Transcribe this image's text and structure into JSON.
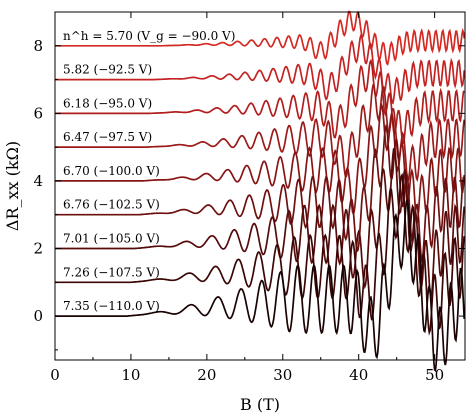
{
  "chart_data": {
    "type": "line",
    "xlabel": "B (T)",
    "ylabel": "ΔR_xx (kΩ)",
    "xlim": [
      0,
      54
    ],
    "ylim": [
      -1.3,
      9.0
    ],
    "xticks": [
      0,
      10,
      20,
      30,
      40,
      50
    ],
    "yticks": [
      0,
      2,
      4,
      6,
      8
    ],
    "grid": false,
    "legend": "inline labels at left of each curve",
    "series": [
      {
        "label": "n^h = 5.70 (V_g = −90.0 V)",
        "offset": 8.0,
        "color": "#d42a24",
        "onset": 14,
        "main_peak": 39.2,
        "peak_amp": 0.6,
        "period": 5.3,
        "pre_drop": 0.45
      },
      {
        "label": "5.82 (−92.5 V)",
        "offset": 7.0,
        "color": "#c42323",
        "onset": 13,
        "main_peak": 40.2,
        "peak_amp": 0.75,
        "period": 5.6,
        "pre_drop": 0.6
      },
      {
        "label": "6.18 (−95.0 V)",
        "offset": 6.0,
        "color": "#b21e1e",
        "onset": 12.5,
        "main_peak": 41.3,
        "peak_amp": 0.9,
        "period": 5.8,
        "pre_drop": 0.75
      },
      {
        "label": "6.47 (−97.5 V)",
        "offset": 5.0,
        "color": "#9c1a1a",
        "onset": 12,
        "main_peak": 42.5,
        "peak_amp": 1.1,
        "period": 6.1,
        "pre_drop": 0.9
      },
      {
        "label": "6.70 (−100.0 V)",
        "offset": 4.0,
        "color": "#861515",
        "onset": 11.5,
        "main_peak": 43.3,
        "peak_amp": 1.3,
        "period": 6.3,
        "pre_drop": 1.0
      },
      {
        "label": "6.76 (−102.5 V)",
        "offset": 3.0,
        "color": "#6e1010",
        "onset": 11,
        "main_peak": 43.8,
        "peak_amp": 1.5,
        "period": 6.4,
        "pre_drop": 1.1
      },
      {
        "label": "7.01 (−105.0 V)",
        "offset": 2.0,
        "color": "#560b0b",
        "onset": 10.5,
        "main_peak": 44.6,
        "peak_amp": 1.7,
        "period": 6.6,
        "pre_drop": 1.2
      },
      {
        "label": "7.26 (−107.5 V)",
        "offset": 1.0,
        "color": "#3a0606",
        "onset": 10,
        "main_peak": 45.3,
        "peak_amp": 1.85,
        "period": 6.8,
        "pre_drop": 1.3
      },
      {
        "label": "7.35 (−110.0 V)",
        "offset": 0.0,
        "color": "#1a0303",
        "onset": 9.5,
        "main_peak": 46.0,
        "peak_amp": 2.0,
        "period": 6.9,
        "pre_drop": 1.4
      }
    ]
  }
}
